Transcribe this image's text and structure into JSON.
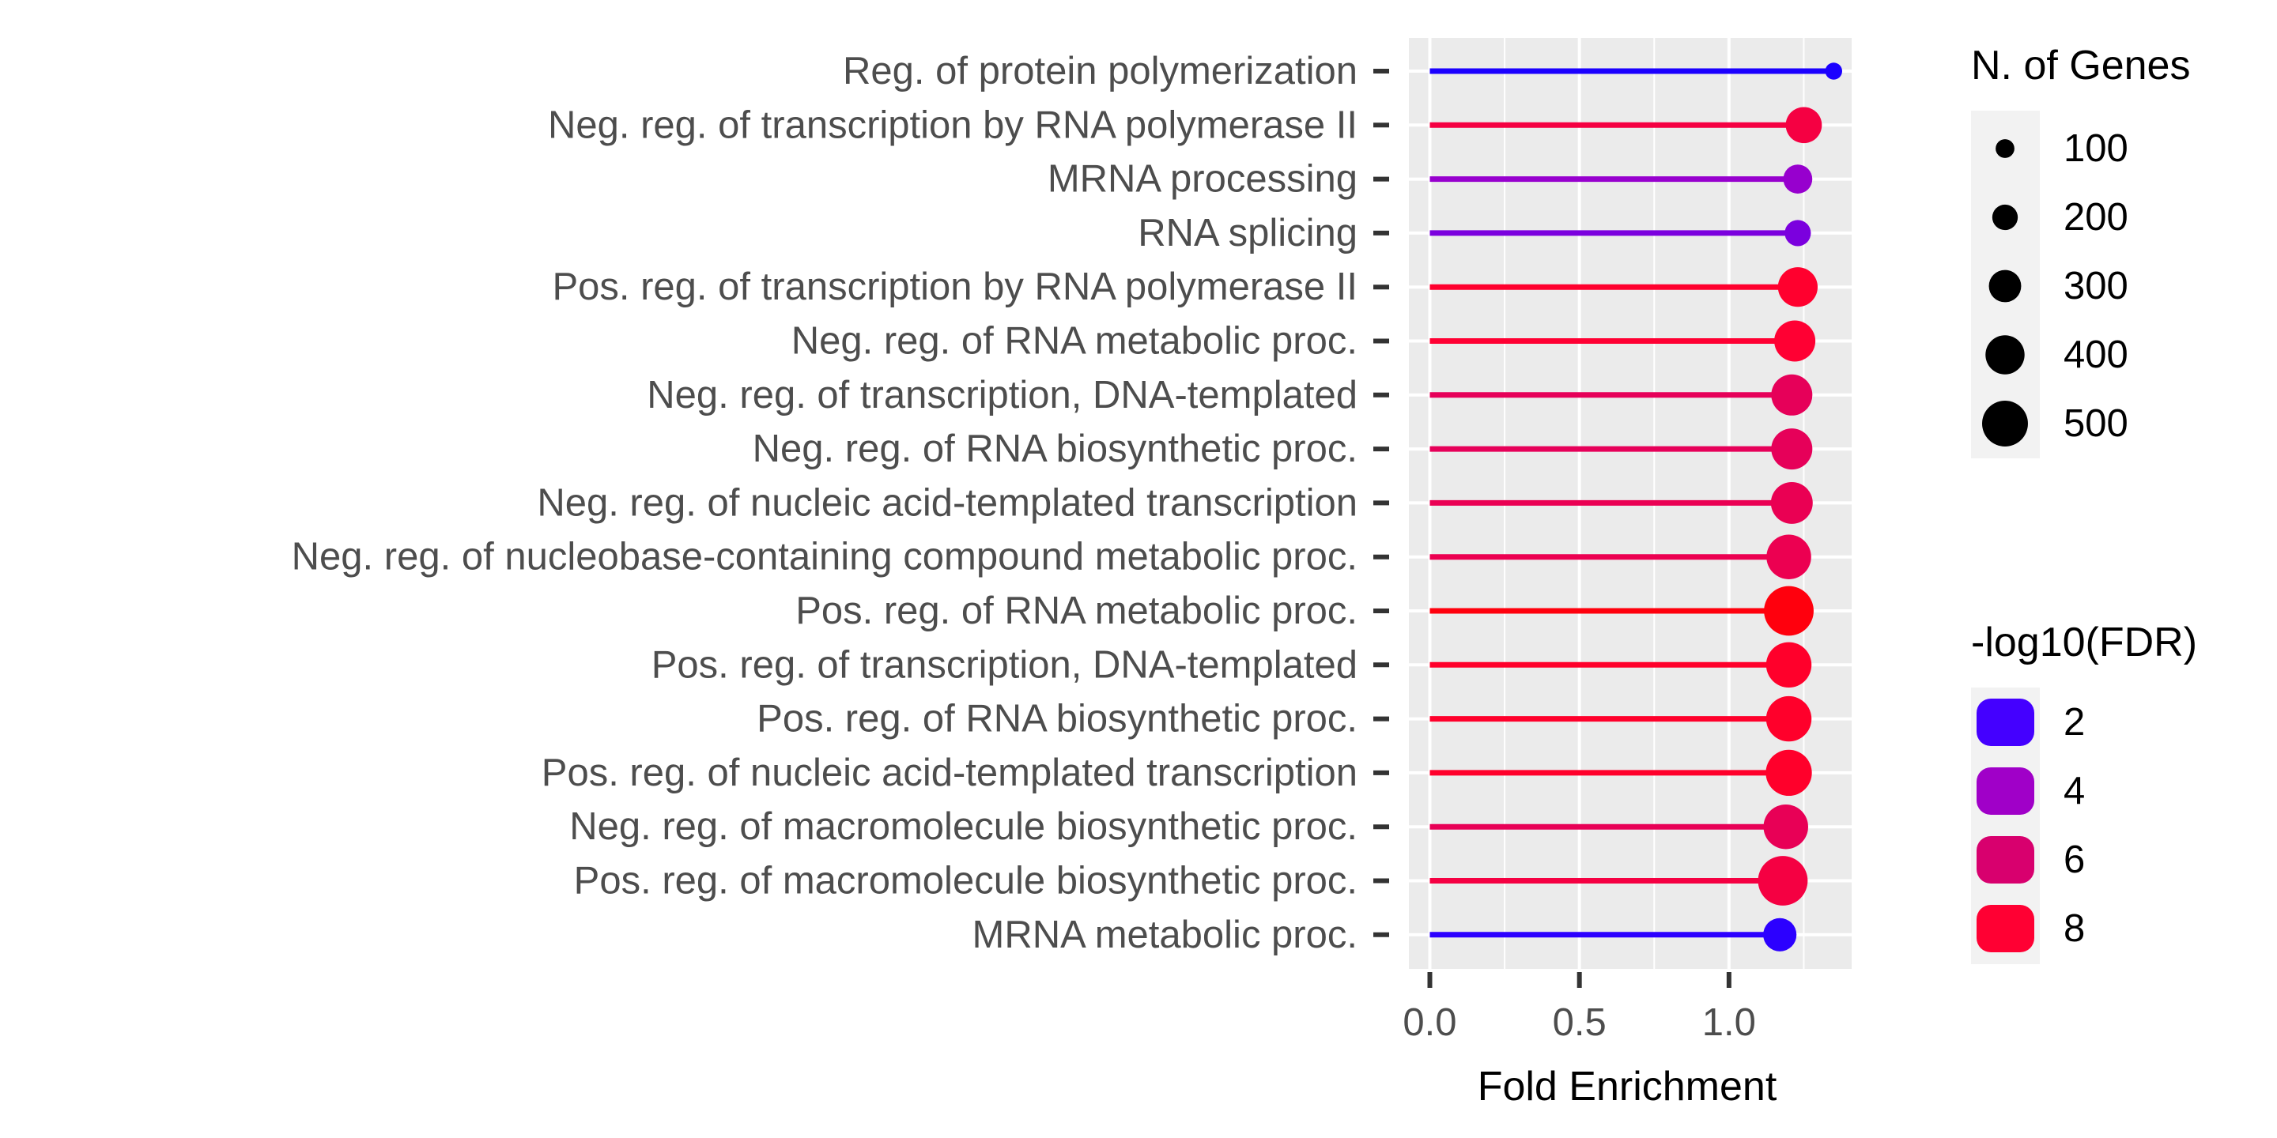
{
  "chart_data": {
    "type": "lollipop",
    "xlabel": "Fold Enrichment",
    "ylabel": "",
    "xlim": [
      -0.07,
      1.41
    ],
    "x_ticks": [
      0.0,
      0.5,
      1.0
    ],
    "x_tick_labels": [
      "0.0",
      "0.5",
      "1.0"
    ],
    "grid": true,
    "legend_position": "right",
    "categories": [
      "Reg. of protein polymerization",
      "Neg. reg. of transcription by RNA polymerase II",
      "MRNA processing",
      "RNA splicing",
      "Pos. reg. of transcription by RNA polymerase II",
      "Neg. reg. of RNA metabolic proc.",
      "Neg. reg. of transcription, DNA-templated",
      "Neg. reg. of RNA biosynthetic proc.",
      "Neg. reg. of nucleic acid-templated transcription",
      "Neg. reg. of nucleobase-containing compound metabolic proc.",
      "Pos. reg. of RNA metabolic proc.",
      "Pos. reg. of transcription, DNA-templated",
      "Pos. reg. of RNA biosynthetic proc.",
      "Pos. reg. of nucleic acid-templated transcription",
      "Neg. reg. of macromolecule biosynthetic proc.",
      "Pos. reg. of macromolecule biosynthetic proc.",
      "MRNA metabolic proc."
    ],
    "fold_enrichment": [
      1.35,
      1.25,
      1.23,
      1.23,
      1.23,
      1.22,
      1.21,
      1.21,
      1.21,
      1.2,
      1.2,
      1.2,
      1.2,
      1.2,
      1.19,
      1.18,
      1.17
    ],
    "n_genes": [
      60,
      330,
      230,
      190,
      380,
      400,
      400,
      400,
      410,
      450,
      520,
      460,
      460,
      470,
      450,
      520,
      290
    ],
    "neg_log10_fdr": [
      0.8,
      7.5,
      3.8,
      3.2,
      8.2,
      8.0,
      6.7,
      6.7,
      6.9,
      7.0,
      9.5,
      8.3,
      8.3,
      8.3,
      6.8,
      7.5,
      1.3
    ],
    "size_legend": {
      "title": "N. of Genes",
      "values": [
        100,
        200,
        300,
        400,
        500
      ],
      "labels": [
        "100",
        "200",
        "300",
        "400",
        "500"
      ]
    },
    "color_legend": {
      "title": "-log10(FDR)",
      "values": [
        2,
        4,
        6,
        8
      ],
      "labels": [
        "2",
        "4",
        "6",
        "8"
      ],
      "colors": [
        "#4400ff",
        "#a000c8",
        "#d8006e",
        "#ff0033"
      ]
    },
    "color_scale": {
      "stops": [
        [
          0,
          "#0000ff"
        ],
        [
          2,
          "#4400ff"
        ],
        [
          4,
          "#a000c8"
        ],
        [
          6,
          "#d8006e"
        ],
        [
          8,
          "#ff0033"
        ],
        [
          10,
          "#ff0000"
        ]
      ]
    }
  }
}
